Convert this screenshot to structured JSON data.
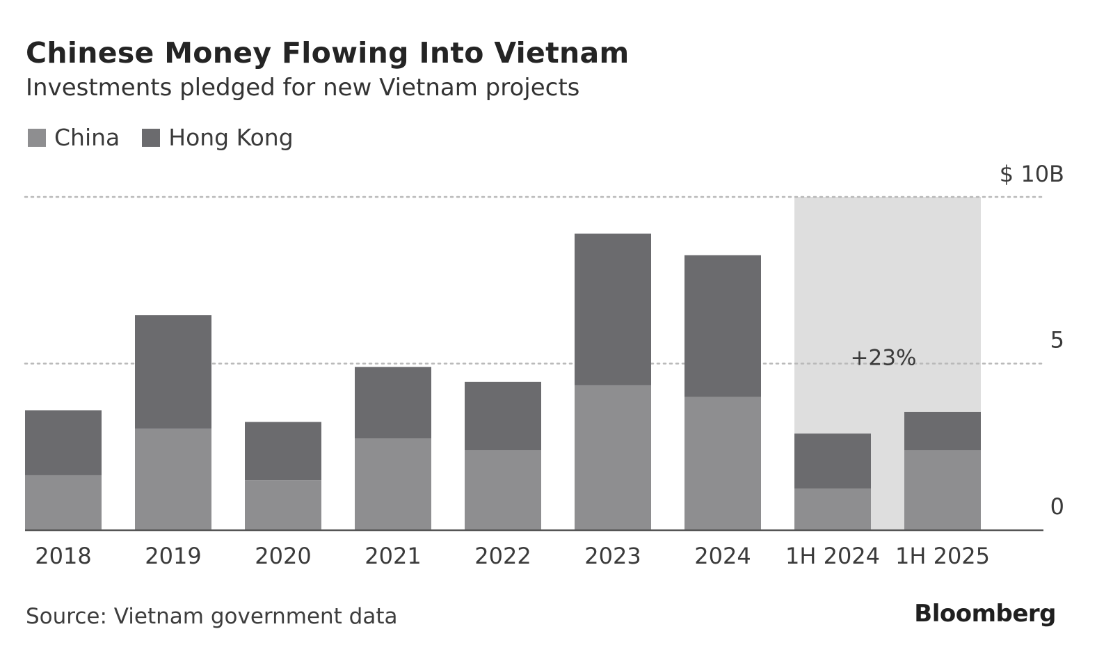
{
  "title": "Chinese Money Flowing Into Vietnam",
  "subtitle": "Investments pledged for new Vietnam projects",
  "source": "Source: Vietnam government data",
  "brand": "Bloomberg",
  "colors": {
    "china": "#8e8e90",
    "hong_kong": "#6b6b6e",
    "highlight": "#dedede",
    "gridline": "#b8b8b8",
    "axis": "#555555"
  },
  "chart_data": {
    "type": "bar",
    "stacked": true,
    "title": "Chinese Money Flowing Into Vietnam",
    "subtitle": "Investments pledged for new Vietnam projects",
    "categories": [
      "2018",
      "2019",
      "2020",
      "2021",
      "2022",
      "2023",
      "2024",
      "1H 2024",
      "1H 2025"
    ],
    "series": [
      {
        "name": "China",
        "values": [
          1.65,
          3.05,
          1.5,
          2.75,
          2.4,
          4.35,
          4.0,
          1.25,
          2.4
        ]
      },
      {
        "name": "Hong Kong",
        "values": [
          1.95,
          3.4,
          1.75,
          2.15,
          2.05,
          4.55,
          4.25,
          1.65,
          1.15
        ]
      }
    ],
    "y_ticks": [
      {
        "value": 10,
        "label": "$ 10B"
      },
      {
        "value": 5,
        "label": "5"
      },
      {
        "value": 0,
        "label": "0"
      }
    ],
    "ylim": [
      0,
      10
    ],
    "ylabel": "",
    "xlabel": "",
    "y_axis_position": "right",
    "grid": "dotted horizontal",
    "legend_position": "top-left",
    "highlight": {
      "categories": [
        "1H 2024",
        "1H 2025"
      ],
      "annotation": "+23%"
    }
  }
}
